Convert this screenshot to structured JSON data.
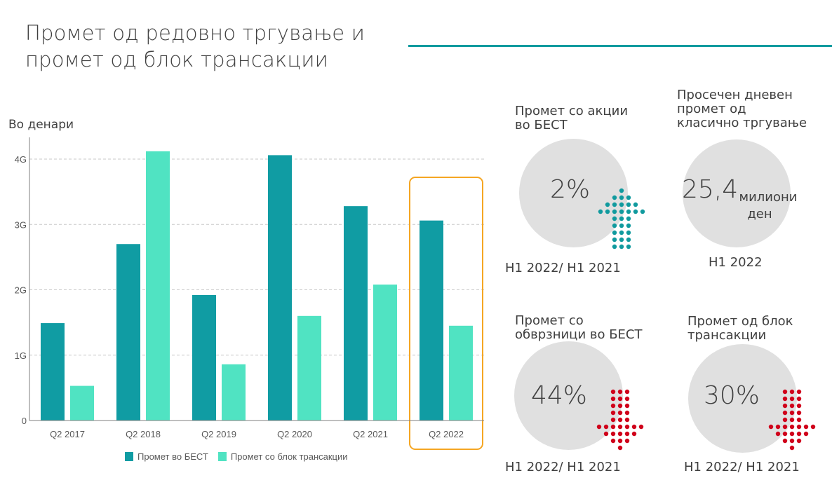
{
  "title": "Промет од редовно тргување и промет од блок трансакции",
  "title_lines": [
    "Промет од редовно тргување и",
    "промет од блок трансакции"
  ],
  "colors": {
    "best": "#109ca3",
    "block": "#50e3c2",
    "highlight": "#f5a623",
    "up": "#109a9e",
    "down": "#d0021b",
    "circle": "#e0e0e0"
  },
  "chart_data": {
    "type": "bar",
    "ylabel": "Во денари",
    "categories": [
      "Q2 2017",
      "Q2 2018",
      "Q2 2019",
      "Q2 2020",
      "Q2 2021",
      "Q2 2022"
    ],
    "series": [
      {
        "name": "Промет во БЕСТ",
        "values": [
          1.49,
          2.7,
          1.92,
          4.06,
          3.28,
          3.06
        ]
      },
      {
        "name": "Промет со блок трансакции",
        "values": [
          0.53,
          4.12,
          0.86,
          1.6,
          2.08,
          1.45
        ]
      }
    ],
    "units": "G",
    "ylim": [
      0,
      4.2
    ],
    "yticks": [
      {
        "v": 0,
        "label": "0"
      },
      {
        "v": 1,
        "label": "1G"
      },
      {
        "v": 2,
        "label": "2G"
      },
      {
        "v": 3,
        "label": "3G"
      },
      {
        "v": 4,
        "label": "4G"
      }
    ],
    "grid": true,
    "highlighted_category": "Q2 2022",
    "legend_position": "bottom"
  },
  "kpis": [
    {
      "title_lines": [
        "Промет со акции",
        "во БЕСТ"
      ],
      "value": "2%",
      "period": "H1 2022/ H1 2021",
      "direction": "up"
    },
    {
      "title_lines": [
        "Просечен дневен",
        "промет од",
        "класично тргување"
      ],
      "value": "25,4",
      "unit_lines": [
        "милиони",
        "ден"
      ],
      "period": "H1 2022"
    },
    {
      "title_lines": [
        "Промет со",
        "обврзници во БЕСТ"
      ],
      "value": "44%",
      "period": "H1 2022/ H1 2021",
      "direction": "down"
    },
    {
      "title_lines": [
        "Промет од блок",
        "трансакции"
      ],
      "value": "30%",
      "period": "H1 2022/ H1 2021",
      "direction": "down"
    }
  ]
}
